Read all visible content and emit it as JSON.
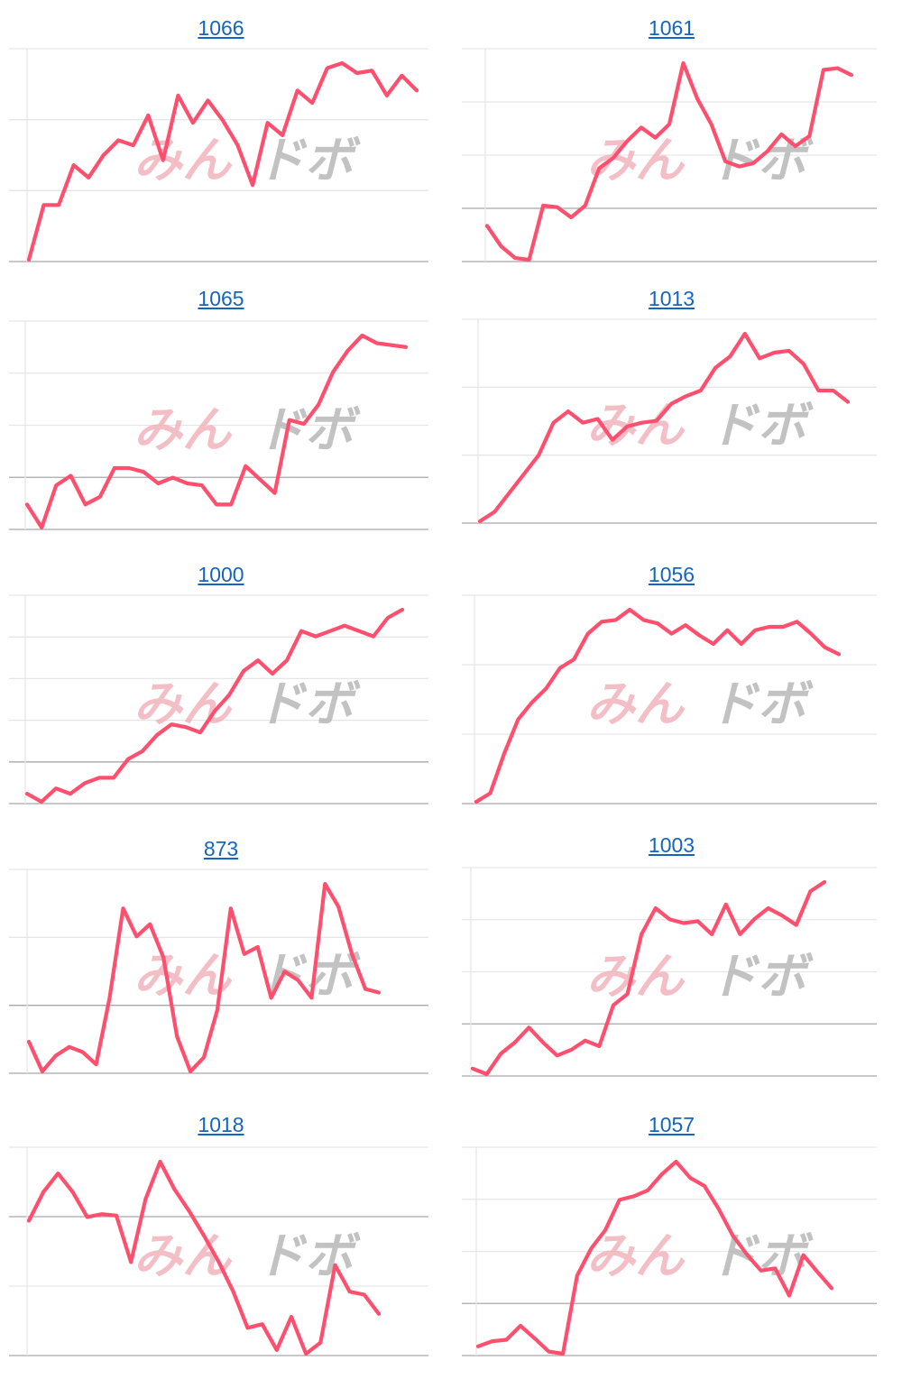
{
  "watermark": {
    "left": "みん",
    "right": "ドボ"
  },
  "colors": {
    "line": "#ff4f6e",
    "title_link": "#1565c0",
    "grid": "#e6e6e6",
    "baseline": "#a8a8a8"
  },
  "chart_data": [
    {
      "type": "line",
      "title": "1066",
      "gridlines": 3,
      "baseline_index": 3,
      "values": [
        0.0,
        0.22,
        0.22,
        0.38,
        0.33,
        0.42,
        0.48,
        0.46,
        0.58,
        0.4,
        0.66,
        0.55,
        0.64,
        0.56,
        0.46,
        0.3,
        0.55,
        0.5,
        0.68,
        0.63,
        0.77,
        0.79,
        0.75,
        0.76,
        0.66,
        0.74,
        0.68
      ]
    },
    {
      "type": "line",
      "title": "1061",
      "gridlines": 4,
      "baseline_index": 3,
      "values": [
        0.0,
        -0.12,
        -0.19,
        -0.2,
        0.12,
        0.11,
        0.05,
        0.12,
        0.34,
        0.4,
        0.5,
        0.58,
        0.52,
        0.6,
        0.96,
        0.75,
        0.6,
        0.38,
        0.35,
        0.37,
        0.44,
        0.54,
        0.47,
        0.53,
        0.92,
        0.93,
        0.89
      ]
    },
    {
      "type": "line",
      "title": "1065",
      "gridlines": 4,
      "baseline_index": 3,
      "values": [
        0.0,
        -0.12,
        0.1,
        0.15,
        0.0,
        0.04,
        0.19,
        0.19,
        0.17,
        0.11,
        0.14,
        0.11,
        0.1,
        0.0,
        0.0,
        0.2,
        0.13,
        0.06,
        0.44,
        0.42,
        0.52,
        0.69,
        0.8,
        0.88,
        0.84,
        0.83,
        0.82
      ]
    },
    {
      "type": "line",
      "title": "1013",
      "gridlines": 3,
      "baseline_index": 3,
      "values": [
        0.0,
        0.05,
        0.15,
        0.25,
        0.35,
        0.52,
        0.58,
        0.52,
        0.54,
        0.43,
        0.5,
        0.52,
        0.53,
        0.62,
        0.66,
        0.69,
        0.81,
        0.87,
        0.99,
        0.86,
        0.89,
        0.9,
        0.83,
        0.69,
        0.69,
        0.63
      ]
    },
    {
      "type": "line",
      "title": "1000",
      "gridlines": 5,
      "baseline_index": 4,
      "values": [
        0.0,
        -0.03,
        0.02,
        0.0,
        0.04,
        0.06,
        0.06,
        0.13,
        0.16,
        0.22,
        0.26,
        0.25,
        0.23,
        0.31,
        0.37,
        0.46,
        0.5,
        0.45,
        0.5,
        0.61,
        0.59,
        0.61,
        0.63,
        0.61,
        0.59,
        0.66,
        0.69
      ]
    },
    {
      "type": "line",
      "title": "1056",
      "gridlines": 3,
      "baseline_index": 3,
      "values": [
        0.0,
        0.05,
        0.28,
        0.48,
        0.58,
        0.66,
        0.78,
        0.83,
        0.98,
        1.05,
        1.06,
        1.12,
        1.06,
        1.04,
        0.98,
        1.03,
        0.97,
        0.92,
        1.0,
        0.92,
        1.0,
        1.02,
        1.02,
        1.05,
        0.98,
        0.9,
        0.86
      ]
    },
    {
      "type": "line",
      "title": "873",
      "gridlines": 3,
      "baseline_index": 2,
      "values": [
        0.0,
        -0.17,
        -0.08,
        -0.03,
        -0.06,
        -0.13,
        0.25,
        0.76,
        0.6,
        0.67,
        0.48,
        0.03,
        -0.17,
        -0.09,
        0.18,
        0.76,
        0.5,
        0.54,
        0.25,
        0.4,
        0.35,
        0.25,
        0.9,
        0.77,
        0.5,
        0.3,
        0.28
      ]
    },
    {
      "type": "line",
      "title": "1003",
      "gridlines": 4,
      "baseline_index": 3,
      "values": [
        0.0,
        -0.03,
        0.08,
        0.14,
        0.22,
        0.14,
        0.07,
        0.1,
        0.15,
        0.12,
        0.34,
        0.4,
        0.72,
        0.86,
        0.8,
        0.78,
        0.79,
        0.72,
        0.88,
        0.72,
        0.8,
        0.86,
        0.82,
        0.77,
        0.95,
        1.0
      ]
    },
    {
      "type": "line",
      "title": "1018",
      "gridlines": 3,
      "baseline_index": 1,
      "values": [
        0.0,
        0.39,
        0.64,
        0.39,
        0.05,
        0.09,
        0.07,
        -0.56,
        0.29,
        0.8,
        0.42,
        0.13,
        -0.2,
        -0.55,
        -0.95,
        -1.45,
        -1.4,
        -1.75,
        -1.3,
        -1.8,
        -1.65,
        -0.6,
        -0.96,
        -1.0,
        -1.26
      ]
    },
    {
      "type": "line",
      "title": "1057",
      "gridlines": 4,
      "baseline_index": 3,
      "values": [
        0.0,
        0.07,
        0.09,
        0.28,
        0.11,
        -0.07,
        -0.1,
        0.96,
        1.33,
        1.58,
        1.99,
        2.04,
        2.12,
        2.34,
        2.51,
        2.29,
        2.18,
        1.87,
        1.51,
        1.25,
        1.03,
        1.06,
        0.69,
        1.24,
        1.01,
        0.79
      ]
    }
  ]
}
